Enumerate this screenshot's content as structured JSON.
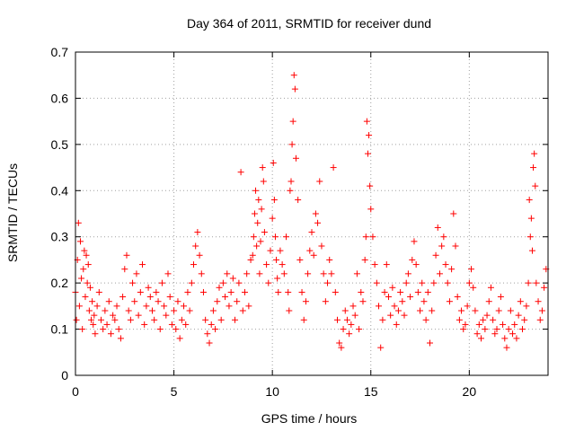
{
  "chart_data": {
    "type": "scatter",
    "title": "Day 364 of 2011, SRMTID for receiver dund",
    "xlabel": "GPS time / hours",
    "ylabel": "SRMTID / TECUs",
    "xlim": [
      0,
      24
    ],
    "ylim": [
      0,
      0.7
    ],
    "x_ticks": [
      0,
      5,
      10,
      15,
      20
    ],
    "x_tick_labels": [
      "0",
      "5",
      "10",
      "15",
      "20"
    ],
    "y_ticks": [
      0,
      0.1,
      0.2,
      0.3,
      0.4,
      0.5,
      0.6,
      0.7
    ],
    "y_tick_labels": [
      "0",
      "0.1",
      "0.2",
      "0.3",
      "0.4",
      "0.5",
      "0.6",
      "0.7"
    ],
    "grid": true,
    "marker": "plus",
    "color": "#ff0000",
    "series": [
      {
        "name": "SRMTID",
        "x": [
          0.0,
          0.05,
          0.1,
          0.15,
          0.2,
          0.25,
          0.3,
          0.35,
          0.4,
          0.45,
          0.5,
          0.55,
          0.6,
          0.65,
          0.7,
          0.75,
          0.8,
          0.85,
          0.9,
          0.95,
          1.0,
          1.1,
          1.2,
          1.3,
          1.4,
          1.5,
          1.6,
          1.7,
          1.8,
          1.9,
          2.0,
          2.1,
          2.2,
          2.3,
          2.4,
          2.5,
          2.6,
          2.7,
          2.8,
          2.9,
          3.0,
          3.1,
          3.2,
          3.3,
          3.4,
          3.5,
          3.6,
          3.7,
          3.8,
          3.9,
          4.0,
          4.1,
          4.2,
          4.3,
          4.4,
          4.5,
          4.6,
          4.7,
          4.8,
          4.9,
          5.0,
          5.1,
          5.2,
          5.3,
          5.4,
          5.5,
          5.6,
          5.7,
          5.8,
          5.9,
          6.0,
          6.1,
          6.2,
          6.3,
          6.4,
          6.5,
          6.6,
          6.7,
          6.8,
          6.9,
          7.0,
          7.1,
          7.2,
          7.3,
          7.4,
          7.5,
          7.6,
          7.7,
          7.8,
          7.9,
          8.0,
          8.1,
          8.2,
          8.3,
          8.4,
          8.5,
          8.6,
          8.7,
          8.8,
          8.9,
          9.0,
          9.05,
          9.1,
          9.15,
          9.2,
          9.25,
          9.3,
          9.35,
          9.4,
          9.45,
          9.5,
          9.55,
          9.6,
          9.7,
          9.8,
          9.9,
          10.0,
          10.05,
          10.1,
          10.15,
          10.2,
          10.25,
          10.3,
          10.4,
          10.5,
          10.6,
          10.7,
          10.8,
          10.85,
          10.9,
          10.95,
          11.0,
          11.05,
          11.1,
          11.15,
          11.2,
          11.3,
          11.4,
          11.5,
          11.6,
          11.7,
          11.8,
          11.9,
          12.0,
          12.1,
          12.2,
          12.3,
          12.4,
          12.5,
          12.6,
          12.7,
          12.8,
          12.9,
          13.0,
          13.1,
          13.2,
          13.3,
          13.4,
          13.5,
          13.6,
          13.7,
          13.8,
          13.9,
          14.0,
          14.1,
          14.2,
          14.3,
          14.4,
          14.5,
          14.6,
          14.7,
          14.75,
          14.8,
          14.85,
          14.9,
          14.95,
          15.0,
          15.1,
          15.2,
          15.3,
          15.4,
          15.5,
          15.6,
          15.7,
          15.8,
          15.9,
          16.0,
          16.1,
          16.2,
          16.3,
          16.4,
          16.5,
          16.6,
          16.7,
          16.8,
          16.9,
          17.0,
          17.1,
          17.2,
          17.3,
          17.4,
          17.5,
          17.6,
          17.7,
          17.8,
          17.9,
          18.0,
          18.1,
          18.2,
          18.3,
          18.4,
          18.5,
          18.6,
          18.7,
          18.8,
          18.9,
          19.0,
          19.1,
          19.2,
          19.3,
          19.4,
          19.5,
          19.6,
          19.7,
          19.8,
          19.9,
          20.0,
          20.1,
          20.2,
          20.3,
          20.4,
          20.5,
          20.6,
          20.7,
          20.8,
          20.9,
          21.0,
          21.1,
          21.2,
          21.3,
          21.4,
          21.5,
          21.6,
          21.7,
          21.8,
          21.9,
          22.0,
          22.1,
          22.2,
          22.3,
          22.4,
          22.5,
          22.6,
          22.7,
          22.8,
          22.9,
          23.0,
          23.05,
          23.1,
          23.15,
          23.2,
          23.25,
          23.3,
          23.35,
          23.4,
          23.5,
          23.6,
          23.7,
          23.8,
          23.9
        ],
        "y": [
          0.18,
          0.12,
          0.25,
          0.33,
          0.15,
          0.29,
          0.21,
          0.1,
          0.23,
          0.27,
          0.17,
          0.26,
          0.2,
          0.24,
          0.14,
          0.19,
          0.12,
          0.16,
          0.11,
          0.13,
          0.09,
          0.15,
          0.18,
          0.12,
          0.1,
          0.14,
          0.11,
          0.16,
          0.09,
          0.13,
          0.12,
          0.15,
          0.1,
          0.08,
          0.17,
          0.23,
          0.26,
          0.14,
          0.12,
          0.2,
          0.16,
          0.22,
          0.13,
          0.18,
          0.24,
          0.11,
          0.15,
          0.19,
          0.17,
          0.14,
          0.12,
          0.18,
          0.16,
          0.1,
          0.2,
          0.15,
          0.13,
          0.22,
          0.17,
          0.11,
          0.14,
          0.1,
          0.16,
          0.08,
          0.12,
          0.15,
          0.11,
          0.18,
          0.14,
          0.2,
          0.24,
          0.28,
          0.31,
          0.26,
          0.22,
          0.18,
          0.12,
          0.09,
          0.07,
          0.11,
          0.14,
          0.1,
          0.16,
          0.19,
          0.12,
          0.2,
          0.17,
          0.22,
          0.15,
          0.18,
          0.21,
          0.12,
          0.16,
          0.2,
          0.44,
          0.14,
          0.18,
          0.22,
          0.15,
          0.25,
          0.26,
          0.3,
          0.35,
          0.4,
          0.28,
          0.33,
          0.38,
          0.22,
          0.29,
          0.36,
          0.45,
          0.42,
          0.31,
          0.24,
          0.2,
          0.27,
          0.34,
          0.46,
          0.38,
          0.3,
          0.25,
          0.21,
          0.18,
          0.27,
          0.24,
          0.22,
          0.3,
          0.18,
          0.14,
          0.4,
          0.42,
          0.5,
          0.55,
          0.65,
          0.62,
          0.47,
          0.38,
          0.25,
          0.18,
          0.12,
          0.16,
          0.22,
          0.27,
          0.31,
          0.26,
          0.35,
          0.33,
          0.42,
          0.28,
          0.22,
          0.16,
          0.2,
          0.25,
          0.22,
          0.45,
          0.18,
          0.12,
          0.07,
          0.06,
          0.1,
          0.14,
          0.12,
          0.09,
          0.11,
          0.15,
          0.13,
          0.22,
          0.1,
          0.18,
          0.16,
          0.25,
          0.3,
          0.55,
          0.48,
          0.52,
          0.41,
          0.36,
          0.3,
          0.24,
          0.2,
          0.15,
          0.06,
          0.12,
          0.18,
          0.24,
          0.17,
          0.13,
          0.19,
          0.15,
          0.11,
          0.14,
          0.18,
          0.16,
          0.13,
          0.2,
          0.22,
          0.17,
          0.25,
          0.29,
          0.24,
          0.18,
          0.14,
          0.2,
          0.16,
          0.12,
          0.18,
          0.07,
          0.14,
          0.2,
          0.26,
          0.32,
          0.22,
          0.28,
          0.3,
          0.24,
          0.2,
          0.16,
          0.23,
          0.35,
          0.28,
          0.17,
          0.12,
          0.14,
          0.1,
          0.11,
          0.15,
          0.2,
          0.23,
          0.19,
          0.14,
          0.09,
          0.11,
          0.08,
          0.12,
          0.1,
          0.13,
          0.16,
          0.19,
          0.12,
          0.09,
          0.1,
          0.14,
          0.17,
          0.11,
          0.08,
          0.06,
          0.1,
          0.14,
          0.09,
          0.11,
          0.08,
          0.13,
          0.16,
          0.1,
          0.12,
          0.15,
          0.2,
          0.38,
          0.3,
          0.34,
          0.27,
          0.45,
          0.48,
          0.41,
          0.2,
          0.16,
          0.12,
          0.14,
          0.19,
          0.23
        ]
      }
    ]
  }
}
